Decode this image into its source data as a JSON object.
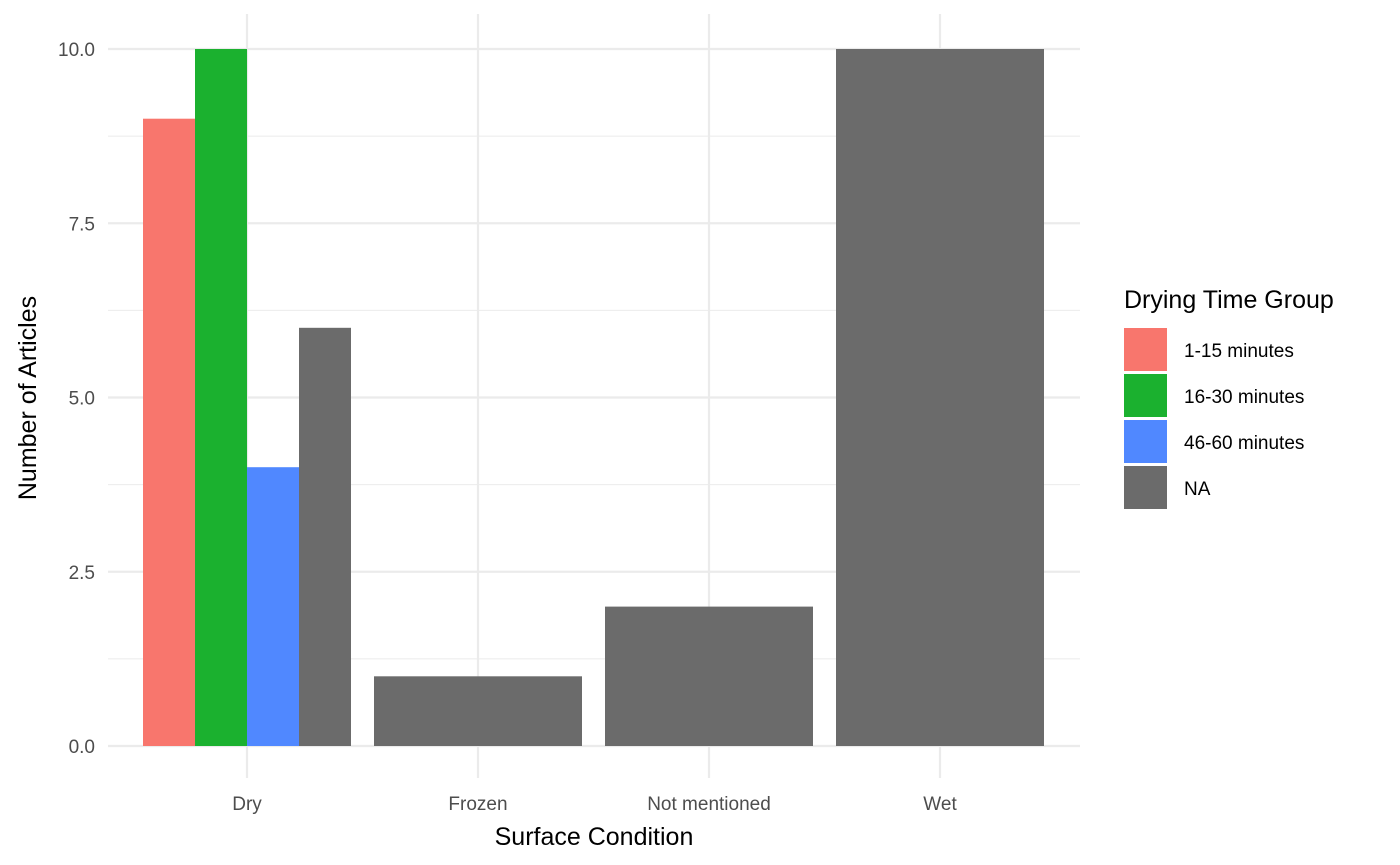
{
  "chart_data": {
    "type": "bar",
    "xlabel": "Surface Condition",
    "ylabel": "Number of Articles",
    "ylim": [
      0,
      10.5
    ],
    "yticks": [
      "0.0",
      "2.5",
      "5.0",
      "7.5",
      "10.0"
    ],
    "ytick_values": [
      0,
      2.5,
      5,
      7.5,
      10
    ],
    "grid": true,
    "legend": {
      "title": "Drying Time Group",
      "position": "right",
      "entries": [
        {
          "label": "1-15 minutes",
          "color": "#F8766D"
        },
        {
          "label": "16-30 minutes",
          "color": "#1BB12F"
        },
        {
          "label": "46-60 minutes",
          "color": "#5088FF"
        },
        {
          "label": "NA",
          "color": "#6B6B6B"
        }
      ]
    },
    "categories": [
      "Dry",
      "Frozen",
      "Not mentioned",
      "Wet"
    ],
    "bars": [
      {
        "category": "Dry",
        "group": "1-15 minutes",
        "value": 9
      },
      {
        "category": "Dry",
        "group": "16-30 minutes",
        "value": 10
      },
      {
        "category": "Dry",
        "group": "46-60 minutes",
        "value": 4
      },
      {
        "category": "Dry",
        "group": "NA",
        "value": 6
      },
      {
        "category": "Frozen",
        "group": "NA",
        "value": 1
      },
      {
        "category": "Not mentioned",
        "group": "NA",
        "value": 2
      },
      {
        "category": "Wet",
        "group": "NA",
        "value": 10
      }
    ]
  }
}
